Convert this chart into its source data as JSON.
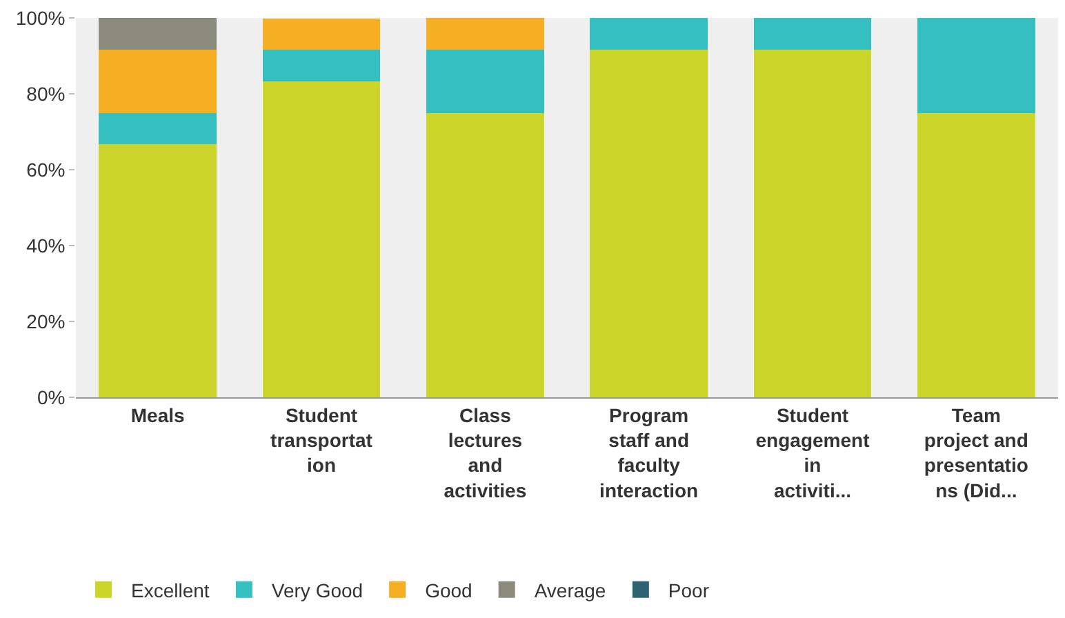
{
  "chart_data": {
    "type": "bar",
    "stacked": true,
    "categories": [
      "Meals",
      "Student\ntransportat\nion",
      "Class\nlectures\nand\nactivities",
      "Program\nstaff and\nfaculty\ninteraction",
      "Student\nengagement\nin\nactiviti...",
      "Team\nproject and\npresentatio\nns (Did..."
    ],
    "series": [
      {
        "name": "Excellent",
        "color": "#cbd52a",
        "values": [
          66.7,
          83.3,
          75,
          91.7,
          91.7,
          75
        ]
      },
      {
        "name": "Very Good",
        "color": "#36bfc0",
        "values": [
          8.3,
          8.3,
          16.7,
          8.3,
          8.3,
          25
        ]
      },
      {
        "name": "Good",
        "color": "#f6ae22",
        "values": [
          16.7,
          8.3,
          8.3,
          0,
          0,
          0
        ]
      },
      {
        "name": "Average",
        "color": "#8b8b7b",
        "values": [
          8.3,
          0,
          0,
          0,
          0,
          0
        ]
      },
      {
        "name": "Poor",
        "color": "#2f6371",
        "values": [
          0,
          0,
          0,
          0,
          0,
          0
        ]
      }
    ],
    "ylim": [
      0,
      100
    ],
    "yticks": [
      {
        "value": 0,
        "label": "0%"
      },
      {
        "value": 20,
        "label": "20%"
      },
      {
        "value": 40,
        "label": "40%"
      },
      {
        "value": 60,
        "label": "60%"
      },
      {
        "value": 80,
        "label": "80%"
      },
      {
        "value": 100,
        "label": "100%"
      }
    ],
    "grid": false,
    "legend": "bottom"
  }
}
